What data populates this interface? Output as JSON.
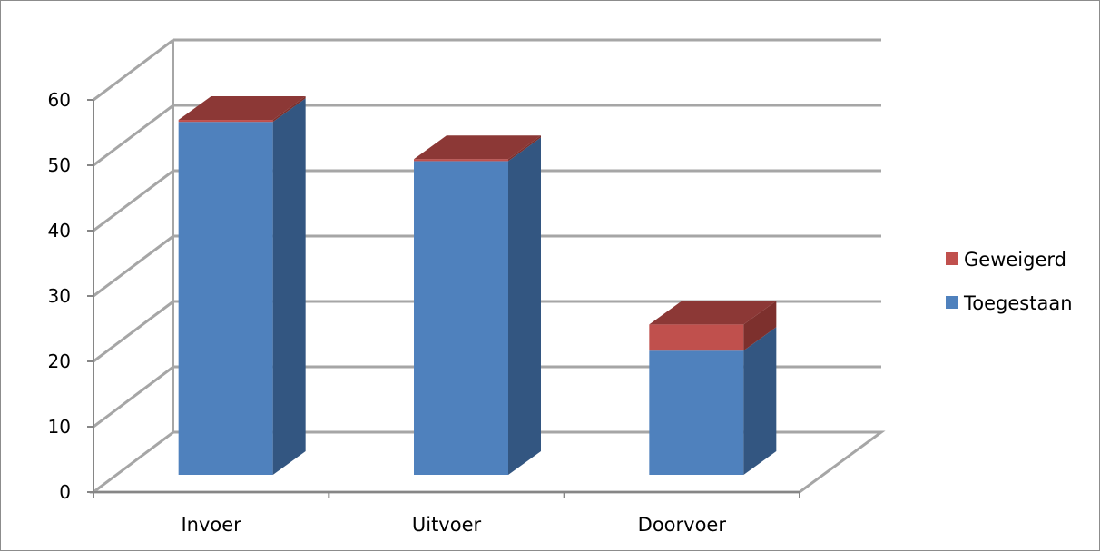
{
  "chart_data": {
    "type": "bar",
    "stacked": true,
    "three_d": true,
    "categories": [
      "Invoer",
      "Uitvoer",
      "Doorvoer"
    ],
    "series": [
      {
        "name": "Toegestaan",
        "values": [
          54,
          48,
          19
        ],
        "color": "#4f81bd",
        "side_color": "#335681"
      },
      {
        "name": "Geweigerd",
        "values": [
          0.3,
          0.3,
          4
        ],
        "color": "#c0504d",
        "top_color": "#8c3836",
        "side_color": "#7d302d"
      }
    ],
    "yticks": [
      "0",
      "10",
      "20",
      "30",
      "40",
      "50",
      "60"
    ],
    "ylim": [
      0,
      60
    ],
    "grid": true,
    "legend_position": "right",
    "colors": {
      "grid": "#a6a6a6",
      "axis": "#868686"
    }
  }
}
